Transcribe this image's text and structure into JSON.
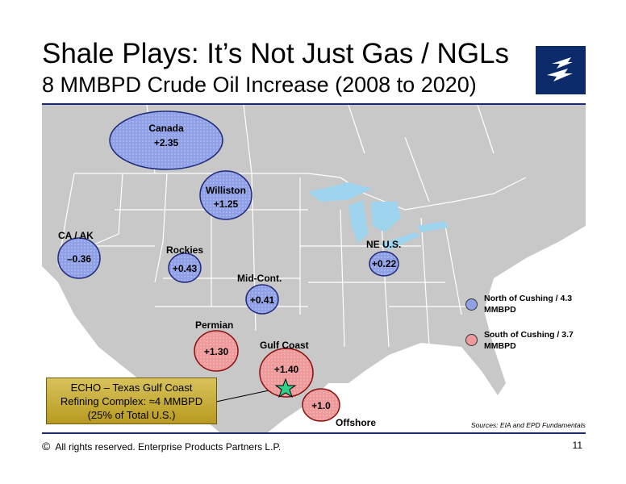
{
  "header": {
    "title": "Shale Plays:  It’s Not Just Gas / NGLs",
    "subtitle": "8 MMBPD Crude Oil Increase (2008 to 2020)"
  },
  "regions": {
    "canada": {
      "name": "Canada",
      "value": "+2.35"
    },
    "williston": {
      "name": "Williston",
      "value": "+1.25"
    },
    "ca_ak": {
      "name": "CA / AK",
      "value": "–0.36"
    },
    "rockies": {
      "name": "Rockies",
      "value": "+0.43"
    },
    "mid_cont": {
      "name": "Mid-Cont.",
      "value": "+0.41"
    },
    "ne_us": {
      "name": "NE U.S.",
      "value": "+0.22"
    },
    "permian": {
      "name": "Permian",
      "value": "+1.30"
    },
    "gulf_coast": {
      "name": "Gulf Coast",
      "value": "+1.40"
    },
    "offshore": {
      "name": "Offshore",
      "value": "+1.0"
    }
  },
  "legend": {
    "north": "North of Cushing / 4.3 MMBPD",
    "south": "South of Cushing / 3.7 MMBPD"
  },
  "callout": {
    "line1": "ECHO – Texas Gulf Coast",
    "line2": "Refining Complex: ≈4 MMBPD",
    "line3": "(25% of Total U.S.)"
  },
  "sources": "Sources:  EIA and EPD Fundamentals",
  "footer": {
    "copyright_symbol": "©",
    "text": "All rights reserved. Enterprise Products Partners L.P.",
    "page_number": "11"
  },
  "colors": {
    "north_fill": "#8fa0e6",
    "south_fill": "#ee9a9a",
    "land": "#c8c8c8",
    "water": "#9fd4ee",
    "accent": "#1a2a6c"
  },
  "icons": [
    "company-logo-icon",
    "echo-star-icon"
  ]
}
